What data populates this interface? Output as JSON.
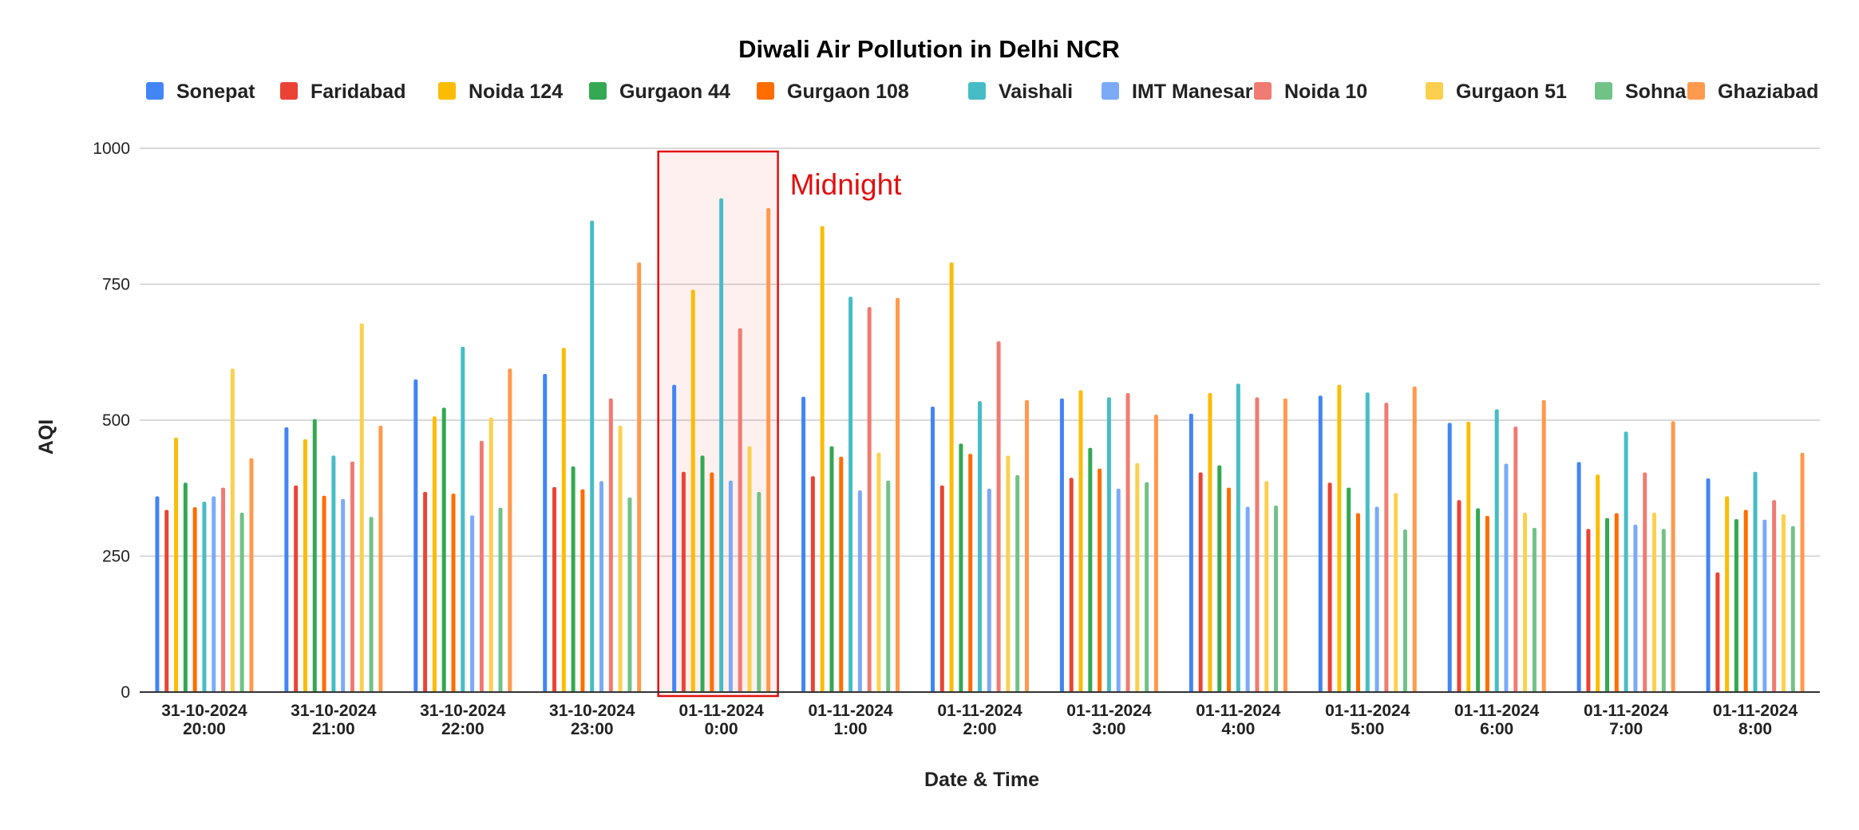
{
  "chart_data": {
    "type": "bar",
    "title": "Diwali Air Pollution in Delhi NCR",
    "xlabel": "Date & Time",
    "ylabel": "AQI",
    "ylim": [
      0,
      1000
    ],
    "yticks": [
      0,
      250,
      500,
      750,
      1000
    ],
    "grid": true,
    "legend_position": "top",
    "categories": [
      [
        "31-10-2024",
        "20:00"
      ],
      [
        "31-10-2024",
        "21:00"
      ],
      [
        "31-10-2024",
        "22:00"
      ],
      [
        "31-10-2024",
        "23:00"
      ],
      [
        "01-11-2024",
        "0:00"
      ],
      [
        "01-11-2024",
        "1:00"
      ],
      [
        "01-11-2024",
        "2:00"
      ],
      [
        "01-11-2024",
        "3:00"
      ],
      [
        "01-11-2024",
        "4:00"
      ],
      [
        "01-11-2024",
        "5:00"
      ],
      [
        "01-11-2024",
        "6:00"
      ],
      [
        "01-11-2024",
        "7:00"
      ],
      [
        "01-11-2024",
        "8:00"
      ]
    ],
    "series": [
      {
        "name": "Sonepat",
        "color": "#4285f4",
        "values": [
          360,
          487,
          575,
          585,
          565,
          543,
          525,
          540,
          512,
          545,
          495,
          423,
          393
        ]
      },
      {
        "name": "Faridabad",
        "color": "#ea4335",
        "values": [
          335,
          380,
          368,
          377,
          405,
          397,
          380,
          394,
          404,
          385,
          353,
          300,
          220
        ]
      },
      {
        "name": "Noida 124",
        "color": "#fbbc04",
        "values": [
          468,
          465,
          507,
          633,
          740,
          857,
          790,
          555,
          550,
          565,
          497,
          400,
          360
        ]
      },
      {
        "name": "Gurgaon 44",
        "color": "#34a853",
        "values": [
          385,
          502,
          523,
          415,
          435,
          452,
          457,
          449,
          417,
          376,
          338,
          320,
          318
        ]
      },
      {
        "name": "Gurgaon 108",
        "color": "#ff6d01",
        "values": [
          340,
          361,
          365,
          373,
          404,
          433,
          438,
          411,
          376,
          329,
          324,
          329,
          335
        ]
      },
      {
        "name": "Vaishali",
        "color": "#46bdc6",
        "values": [
          350,
          435,
          635,
          867,
          908,
          727,
          535,
          542,
          567,
          551,
          520,
          479,
          405
        ]
      },
      {
        "name": "IMT Manesar",
        "color": "#7baaf7",
        "values": [
          360,
          355,
          325,
          388,
          389,
          371,
          374,
          374,
          341,
          341,
          420,
          308,
          317
        ]
      },
      {
        "name": "Noida 10",
        "color": "#f07b72",
        "values": [
          376,
          424,
          462,
          540,
          669,
          708,
          645,
          550,
          542,
          532,
          488,
          404,
          353
        ]
      },
      {
        "name": "Gurgaon 51",
        "color": "#fcd04f",
        "values": [
          595,
          678,
          505,
          490,
          452,
          440,
          435,
          421,
          388,
          366,
          330,
          330,
          327
        ]
      },
      {
        "name": "Sohna",
        "color": "#71c287",
        "values": [
          330,
          322,
          339,
          358,
          368,
          389,
          399,
          386,
          343,
          299,
          302,
          300,
          305
        ]
      },
      {
        "name": "Ghaziabad",
        "color": "#ff994d",
        "values": [
          430,
          490,
          595,
          790,
          890,
          725,
          537,
          510,
          540,
          562,
          537,
          498,
          440
        ]
      }
    ],
    "annotations": [
      {
        "category_index": 4,
        "text": "Midnight",
        "style": "highlight-box"
      }
    ]
  }
}
